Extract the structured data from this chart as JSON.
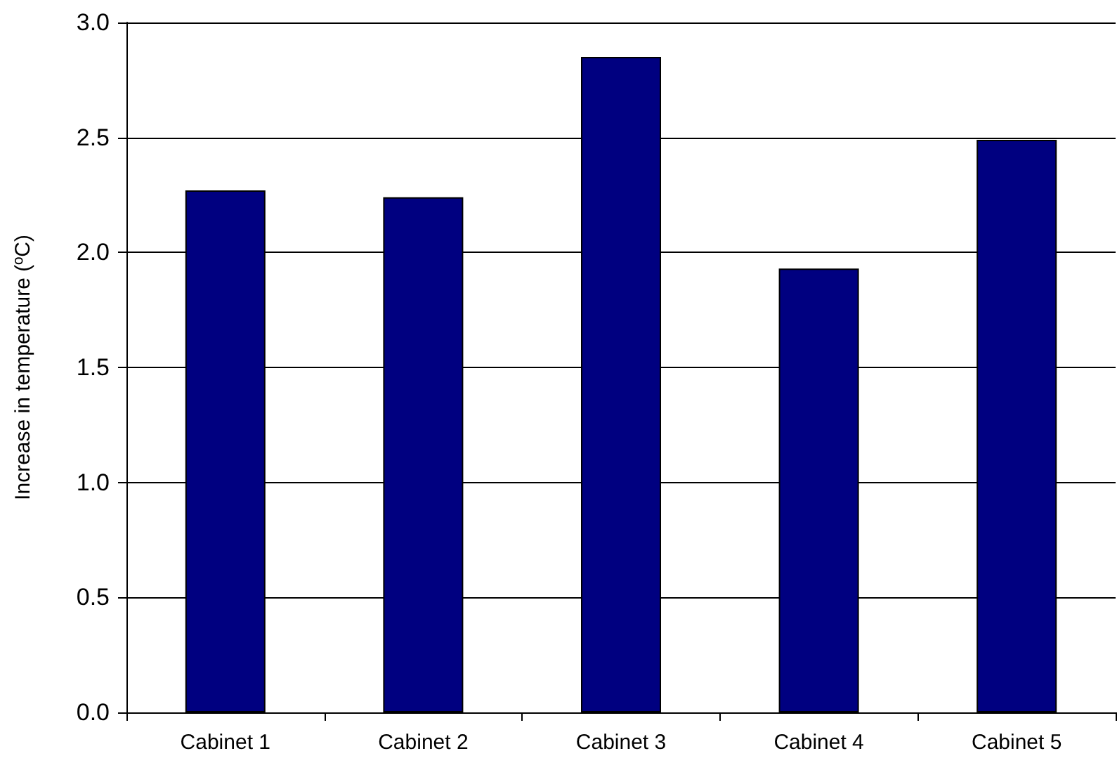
{
  "chart_data": {
    "type": "bar",
    "ylabel": "Increase in temperature (ºC)",
    "categories": [
      "Cabinet 1",
      "Cabinet 2",
      "Cabinet 3",
      "Cabinet 4",
      "Cabinet 5"
    ],
    "values": [
      2.27,
      2.24,
      2.85,
      1.93,
      2.49
    ],
    "color": "#000080",
    "ylim": [
      0,
      3
    ],
    "yticks": [
      {
        "value": 0,
        "label": "0.0"
      },
      {
        "value": 0.5,
        "label": "0.5"
      },
      {
        "value": 1,
        "label": "1.0"
      },
      {
        "value": 1.5,
        "label": "1.5"
      },
      {
        "value": 2,
        "label": "2.0"
      },
      {
        "value": 2.5,
        "label": "2.5"
      },
      {
        "value": 3,
        "label": "3.0"
      }
    ],
    "grid": "y"
  }
}
